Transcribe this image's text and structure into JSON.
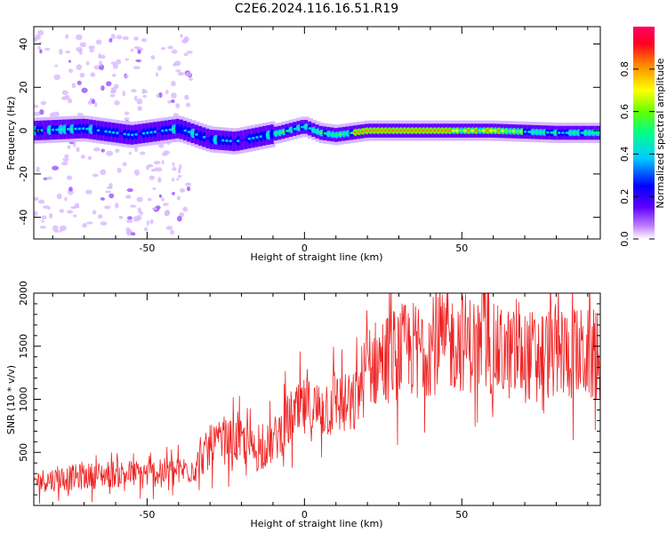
{
  "title": "C2E6.2024.116.16.51.R19",
  "chart_data": [
    {
      "type": "heatmap",
      "xlabel": "Height of straight line (km)",
      "ylabel": "Frequency (Hz)",
      "xlim": [
        -86,
        94
      ],
      "ylim": [
        -50,
        48
      ],
      "x_ticks": [
        -50,
        0,
        50
      ],
      "y_ticks": [
        -40,
        -20,
        0,
        20,
        40
      ],
      "ridge_frequency_hz": {
        "x": [
          -86,
          -70,
          -55,
          -40,
          -30,
          -22,
          -15,
          -8,
          0,
          5,
          10,
          20,
          40,
          60,
          80,
          94
        ],
        "y": [
          0,
          1,
          -2,
          1,
          -4,
          -5,
          -3,
          -1,
          2,
          -1,
          -2,
          0,
          0,
          0,
          -1,
          -1
        ]
      },
      "colorbar": {
        "label": "Normalized spectral amplitude",
        "range": [
          0.0,
          1.0
        ],
        "ticks": [
          0.0,
          0.2,
          0.4,
          0.6,
          0.8
        ],
        "colormap": [
          "#ffffff",
          "#a000ff",
          "#0000ff",
          "#00ccff",
          "#00ff66",
          "#88ff00",
          "#ffff00",
          "#ff8800",
          "#ff0033",
          "#ff0066"
        ]
      },
      "grid": false
    },
    {
      "type": "line",
      "xlabel": "Height of straight line (km)",
      "ylabel": "SNR (10 * v/v)",
      "xlim": [
        -86,
        94
      ],
      "ylim": [
        0,
        2000
      ],
      "x_ticks": [
        -50,
        0,
        50
      ],
      "y_ticks": [
        500,
        1000,
        1500,
        2000
      ],
      "color": "#ee2222",
      "series_trend": {
        "x": [
          -86,
          -75,
          -60,
          -50,
          -40,
          -35,
          -30,
          -25,
          -20,
          -15,
          -10,
          -5,
          0,
          5,
          10,
          15,
          20,
          30,
          40,
          50,
          60,
          70,
          80,
          94
        ],
        "y": [
          230,
          260,
          300,
          300,
          320,
          350,
          550,
          600,
          600,
          500,
          600,
          800,
          900,
          900,
          1000,
          900,
          1300,
          1450,
          1500,
          1550,
          1450,
          1400,
          1450,
          1400
        ]
      },
      "grid": false
    }
  ]
}
